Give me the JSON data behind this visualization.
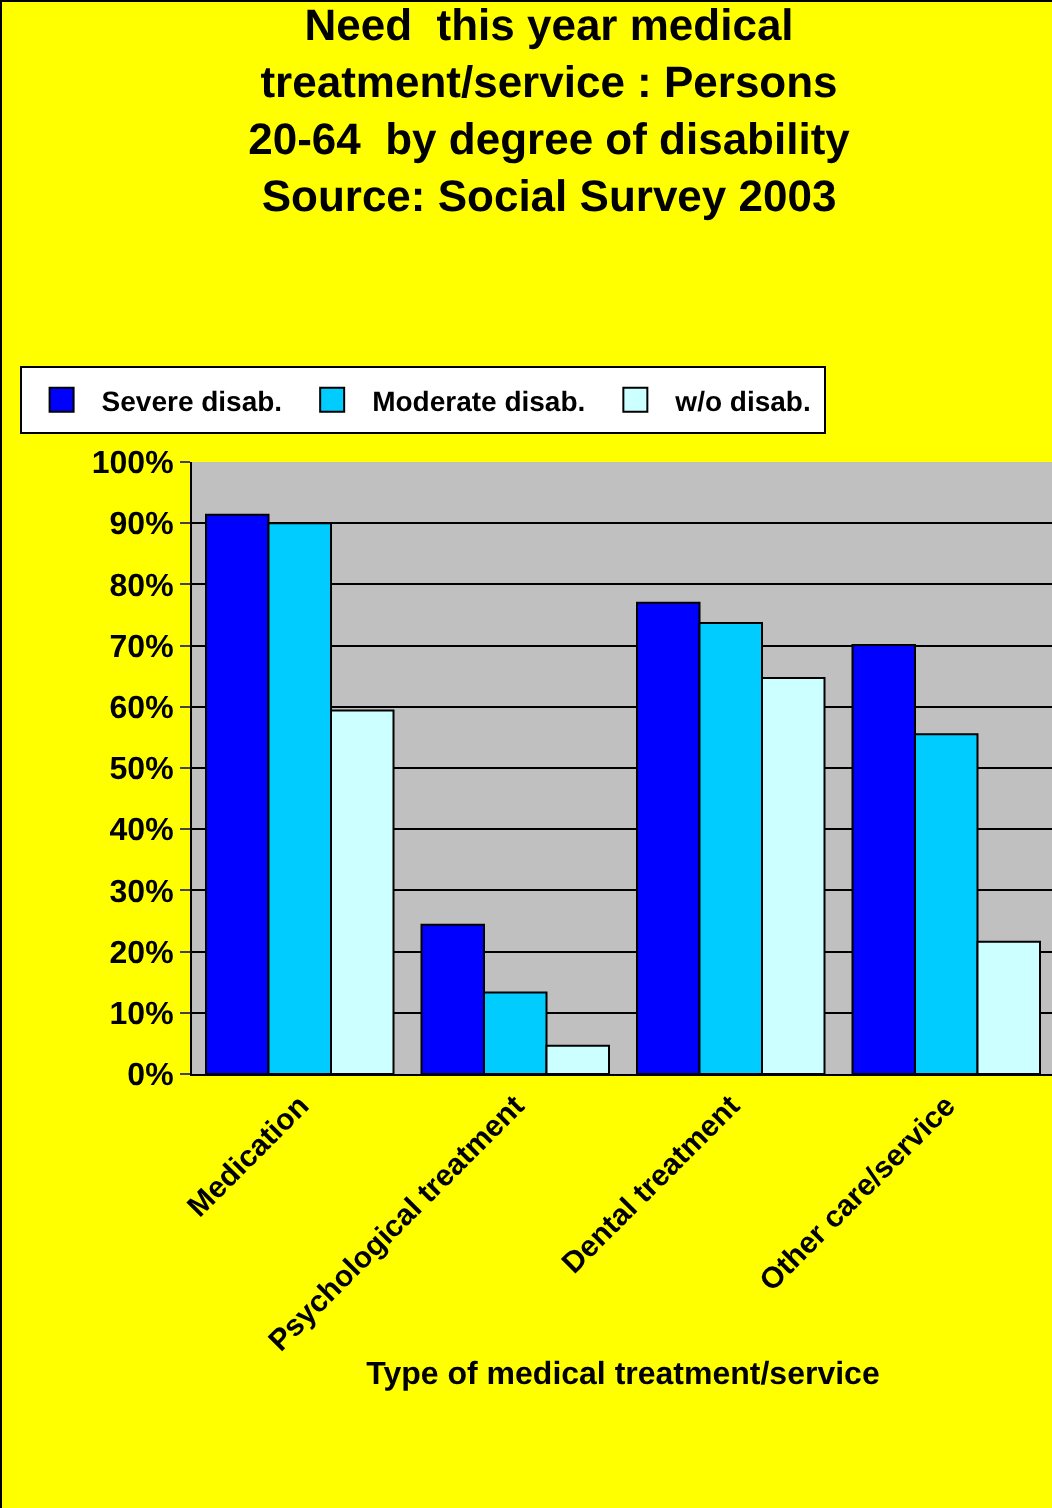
{
  "chart_data": {
    "type": "bar",
    "title": "Need  this year medical treatment/service : Persons 20-64  by degree of disability Source: Social Survey 2003",
    "xlabel": "Type of medical treatment/service",
    "categories": [
      "Medication",
      "Psychological treatment",
      "Dental treatment",
      "Other care/service"
    ],
    "series": [
      {
        "name": "Severe disab.",
        "color": "#0000ff",
        "values": [
          0.914,
          0.244,
          0.77,
          0.701
        ]
      },
      {
        "name": "Moderate disab.",
        "color": "#00ccff",
        "values": [
          0.9,
          0.133,
          0.737,
          0.555
        ]
      },
      {
        "name": "w/o disab.",
        "color": "#ccffff",
        "values": [
          0.594,
          0.046,
          0.647,
          0.216
        ]
      }
    ],
    "ylim": [
      0,
      1
    ],
    "yticks": [
      {
        "value": 0,
        "label": "0%"
      },
      {
        "value": 0.1,
        "label": "10%"
      },
      {
        "value": 0.2,
        "label": "20%"
      },
      {
        "value": 0.3,
        "label": "30%"
      },
      {
        "value": 0.4,
        "label": "40%"
      },
      {
        "value": 0.5,
        "label": "50%"
      },
      {
        "value": 0.6,
        "label": "60%"
      },
      {
        "value": 0.7,
        "label": "70%"
      },
      {
        "value": 0.8,
        "label": "80%"
      },
      {
        "value": 0.9,
        "label": "90%"
      },
      {
        "value": 1,
        "label": "100%"
      }
    ],
    "grid": "y",
    "legend": "top"
  }
}
